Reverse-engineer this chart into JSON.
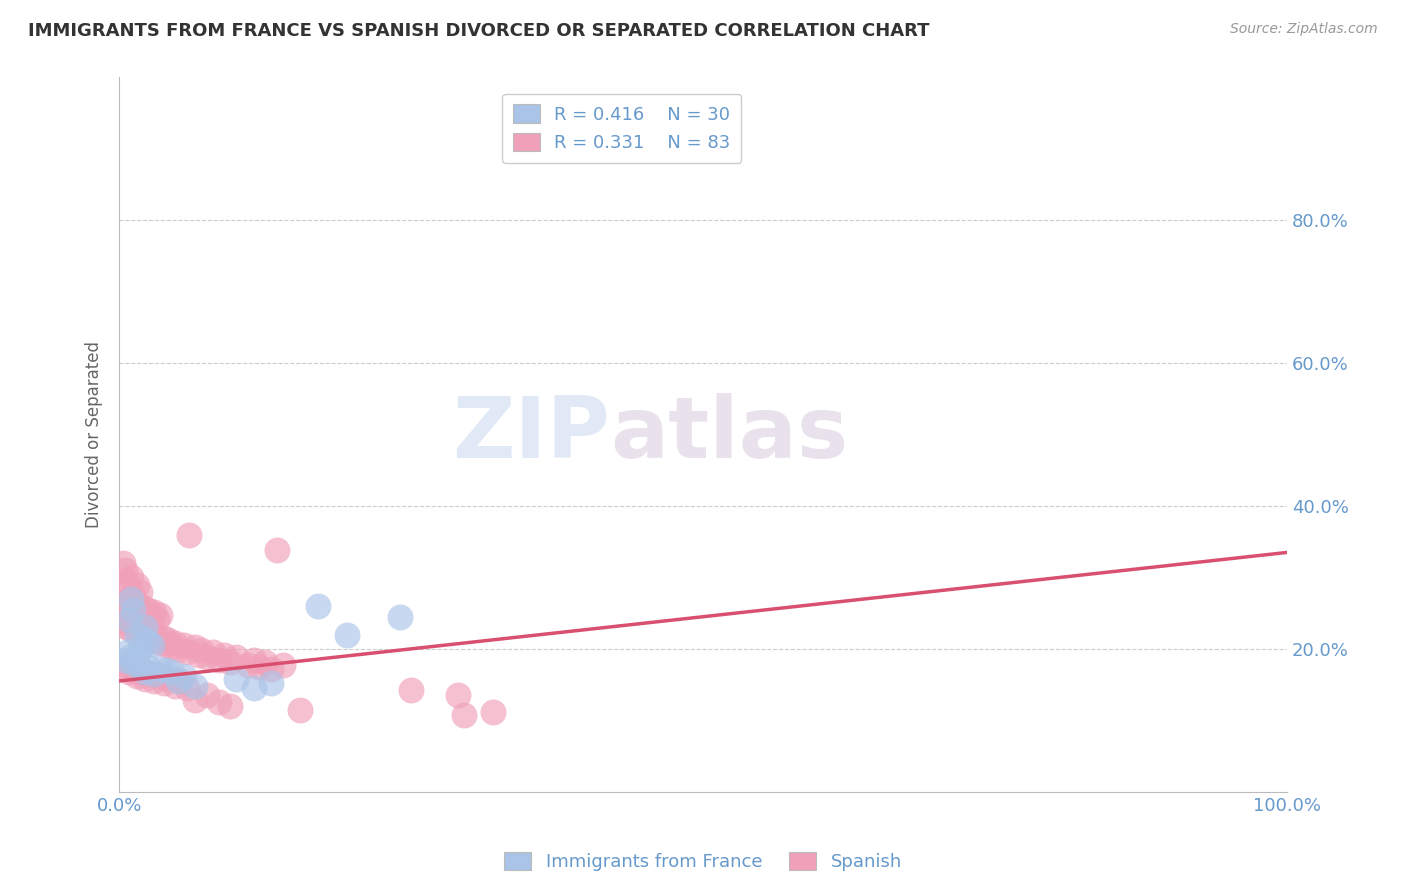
{
  "title": "IMMIGRANTS FROM FRANCE VS SPANISH DIVORCED OR SEPARATED CORRELATION CHART",
  "source_text": "Source: ZipAtlas.com",
  "ylabel": "Divorced or Separated",
  "legend_label1": "Immigrants from France",
  "legend_label2": "Spanish",
  "legend_r1": "R = 0.416",
  "legend_n1": "N = 30",
  "legend_r2": "R = 0.331",
  "legend_n2": "N = 83",
  "watermark_zip": "ZIP",
  "watermark_atlas": "atlas",
  "blue_color": "#aac4e8",
  "pink_color": "#f0a0b8",
  "line_color": "#d94f70",
  "axis_label_color": "#6699cc",
  "legend_text_color": "#6699cc",
  "grid_color": "#cccccc",
  "blue_points": [
    [
      0.01,
      0.27
    ],
    [
      0.012,
      0.255
    ],
    [
      0.008,
      0.24
    ],
    [
      0.015,
      0.22
    ],
    [
      0.018,
      0.2
    ],
    [
      0.02,
      0.215
    ],
    [
      0.022,
      0.23
    ],
    [
      0.025,
      0.21
    ],
    [
      0.028,
      0.205
    ],
    [
      0.005,
      0.185
    ],
    [
      0.007,
      0.195
    ],
    [
      0.009,
      0.188
    ],
    [
      0.012,
      0.18
    ],
    [
      0.015,
      0.185
    ],
    [
      0.018,
      0.175
    ],
    [
      0.022,
      0.168
    ],
    [
      0.025,
      0.175
    ],
    [
      0.03,
      0.165
    ],
    [
      0.035,
      0.172
    ],
    [
      0.04,
      0.17
    ],
    [
      0.045,
      0.168
    ],
    [
      0.05,
      0.155
    ],
    [
      0.055,
      0.162
    ],
    [
      0.065,
      0.148
    ],
    [
      0.1,
      0.158
    ],
    [
      0.115,
      0.145
    ],
    [
      0.13,
      0.152
    ],
    [
      0.17,
      0.26
    ],
    [
      0.195,
      0.22
    ],
    [
      0.24,
      0.245
    ]
  ],
  "pink_points": [
    [
      0.003,
      0.32
    ],
    [
      0.006,
      0.295
    ],
    [
      0.005,
      0.31
    ],
    [
      0.008,
      0.285
    ],
    [
      0.01,
      0.3
    ],
    [
      0.012,
      0.275
    ],
    [
      0.015,
      0.29
    ],
    [
      0.018,
      0.28
    ],
    [
      0.005,
      0.265
    ],
    [
      0.008,
      0.27
    ],
    [
      0.01,
      0.26
    ],
    [
      0.012,
      0.255
    ],
    [
      0.015,
      0.262
    ],
    [
      0.018,
      0.25
    ],
    [
      0.02,
      0.258
    ],
    [
      0.022,
      0.248
    ],
    [
      0.025,
      0.255
    ],
    [
      0.028,
      0.245
    ],
    [
      0.03,
      0.252
    ],
    [
      0.032,
      0.242
    ],
    [
      0.035,
      0.248
    ],
    [
      0.003,
      0.24
    ],
    [
      0.005,
      0.232
    ],
    [
      0.007,
      0.238
    ],
    [
      0.009,
      0.228
    ],
    [
      0.012,
      0.235
    ],
    [
      0.015,
      0.225
    ],
    [
      0.018,
      0.23
    ],
    [
      0.02,
      0.22
    ],
    [
      0.022,
      0.225
    ],
    [
      0.025,
      0.215
    ],
    [
      0.028,
      0.222
    ],
    [
      0.03,
      0.212
    ],
    [
      0.032,
      0.218
    ],
    [
      0.035,
      0.208
    ],
    [
      0.038,
      0.215
    ],
    [
      0.04,
      0.205
    ],
    [
      0.042,
      0.212
    ],
    [
      0.045,
      0.202
    ],
    [
      0.048,
      0.208
    ],
    [
      0.05,
      0.198
    ],
    [
      0.055,
      0.205
    ],
    [
      0.058,
      0.195
    ],
    [
      0.06,
      0.36
    ],
    [
      0.065,
      0.202
    ],
    [
      0.068,
      0.192
    ],
    [
      0.07,
      0.198
    ],
    [
      0.075,
      0.188
    ],
    [
      0.08,
      0.195
    ],
    [
      0.085,
      0.185
    ],
    [
      0.09,
      0.192
    ],
    [
      0.095,
      0.182
    ],
    [
      0.1,
      0.188
    ],
    [
      0.11,
      0.178
    ],
    [
      0.115,
      0.185
    ],
    [
      0.12,
      0.175
    ],
    [
      0.125,
      0.182
    ],
    [
      0.13,
      0.172
    ],
    [
      0.135,
      0.338
    ],
    [
      0.14,
      0.178
    ],
    [
      0.005,
      0.175
    ],
    [
      0.008,
      0.168
    ],
    [
      0.01,
      0.175
    ],
    [
      0.015,
      0.162
    ],
    [
      0.018,
      0.168
    ],
    [
      0.022,
      0.158
    ],
    [
      0.025,
      0.165
    ],
    [
      0.03,
      0.155
    ],
    [
      0.035,
      0.162
    ],
    [
      0.038,
      0.152
    ],
    [
      0.042,
      0.158
    ],
    [
      0.048,
      0.148
    ],
    [
      0.052,
      0.155
    ],
    [
      0.058,
      0.145
    ],
    [
      0.065,
      0.128
    ],
    [
      0.075,
      0.135
    ],
    [
      0.085,
      0.125
    ],
    [
      0.095,
      0.12
    ],
    [
      0.155,
      0.115
    ],
    [
      0.25,
      0.142
    ],
    [
      0.29,
      0.135
    ],
    [
      0.32,
      0.112
    ],
    [
      0.295,
      0.108
    ]
  ],
  "trend_line_pink": {
    "x0": 0.0,
    "y0": 0.155,
    "x1": 1.0,
    "y1": 0.335
  },
  "xlim": [
    0.0,
    1.0
  ],
  "ylim": [
    0.0,
    1.0
  ],
  "ytick_positions": [
    0.2,
    0.4,
    0.6,
    0.8
  ],
  "ytick_labels": [
    "20.0%",
    "40.0%",
    "60.0%",
    "80.0%"
  ]
}
